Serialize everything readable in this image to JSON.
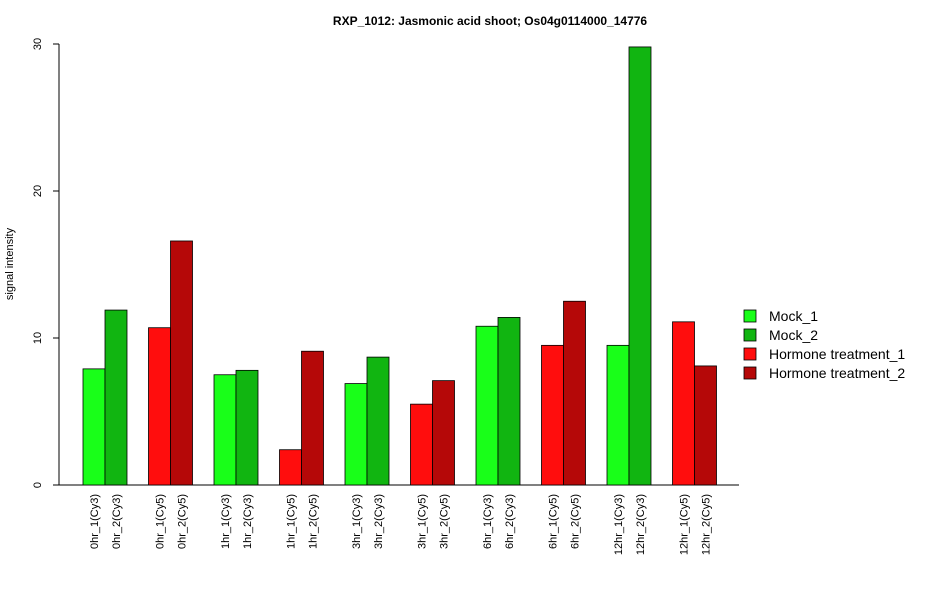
{
  "chart_data": {
    "type": "bar",
    "title": "RXP_1012: Jasmonic acid shoot; Os04g0114000_14776",
    "xlabel": "",
    "ylabel": "signal intensity",
    "ylim": [
      0,
      30
    ],
    "y_ticks": [
      0,
      10,
      20,
      30
    ],
    "grid": false,
    "legend_position": "right",
    "legend": [
      {
        "name": "Mock_1",
        "color": "#19ff19"
      },
      {
        "name": "Mock_2",
        "color": "#11b511"
      },
      {
        "name": "Hormone treatment_1",
        "color": "#ff0d0d"
      },
      {
        "name": "Hormone treatment_2",
        "color": "#b50808"
      }
    ],
    "groups": [
      {
        "bars": [
          {
            "label": "0hr_1(Cy3)",
            "value": 7.9,
            "series": "Mock_1"
          },
          {
            "label": "0hr_2(Cy3)",
            "value": 11.9,
            "series": "Mock_2"
          }
        ]
      },
      {
        "bars": [
          {
            "label": "0hr_1(Cy5)",
            "value": 10.7,
            "series": "Hormone treatment_1"
          },
          {
            "label": "0hr_2(Cy5)",
            "value": 16.6,
            "series": "Hormone treatment_2"
          }
        ]
      },
      {
        "bars": [
          {
            "label": "1hr_1(Cy3)",
            "value": 7.5,
            "series": "Mock_1"
          },
          {
            "label": "1hr_2(Cy3)",
            "value": 7.8,
            "series": "Mock_2"
          }
        ]
      },
      {
        "bars": [
          {
            "label": "1hr_1(Cy5)",
            "value": 2.4,
            "series": "Hormone treatment_1"
          },
          {
            "label": "1hr_2(Cy5)",
            "value": 9.1,
            "series": "Hormone treatment_2"
          }
        ]
      },
      {
        "bars": [
          {
            "label": "3hr_1(Cy3)",
            "value": 6.9,
            "series": "Mock_1"
          },
          {
            "label": "3hr_2(Cy3)",
            "value": 8.7,
            "series": "Mock_2"
          }
        ]
      },
      {
        "bars": [
          {
            "label": "3hr_1(Cy5)",
            "value": 5.5,
            "series": "Hormone treatment_1"
          },
          {
            "label": "3hr_2(Cy5)",
            "value": 7.1,
            "series": "Hormone treatment_2"
          }
        ]
      },
      {
        "bars": [
          {
            "label": "6hr_1(Cy3)",
            "value": 10.8,
            "series": "Mock_1"
          },
          {
            "label": "6hr_2(Cy3)",
            "value": 11.4,
            "series": "Mock_2"
          }
        ]
      },
      {
        "bars": [
          {
            "label": "6hr_1(Cy5)",
            "value": 9.5,
            "series": "Hormone treatment_1"
          },
          {
            "label": "6hr_2(Cy5)",
            "value": 12.5,
            "series": "Hormone treatment_2"
          }
        ]
      },
      {
        "bars": [
          {
            "label": "12hr_1(Cy3)",
            "value": 9.5,
            "series": "Mock_1"
          },
          {
            "label": "12hr_2(Cy3)",
            "value": 29.8,
            "series": "Mock_2"
          }
        ]
      },
      {
        "bars": [
          {
            "label": "12hr_1(Cy5)",
            "value": 11.1,
            "series": "Hormone treatment_1"
          },
          {
            "label": "12hr_2(Cy5)",
            "value": 8.1,
            "series": "Hormone treatment_2"
          }
        ]
      }
    ]
  }
}
